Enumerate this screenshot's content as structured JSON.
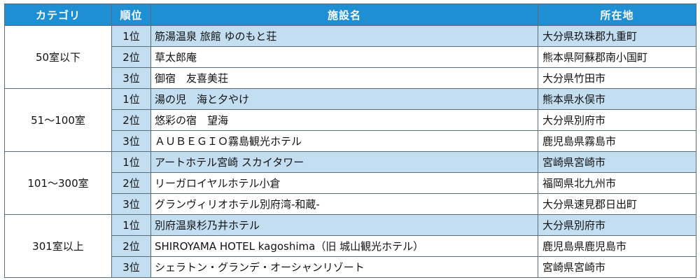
{
  "headers": {
    "category": "カテゴリ",
    "rank": "順位",
    "facility": "施設名",
    "location": "所在地"
  },
  "groups": [
    {
      "category": "50室以下",
      "rows": [
        {
          "rank": "1位",
          "name": "筋湯温泉 旅館 ゆのもと荘",
          "location": "大分県玖珠郡九重町"
        },
        {
          "rank": "2位",
          "name": "草太郎庵",
          "location": "熊本県阿蘇郡南小国町"
        },
        {
          "rank": "3位",
          "name": "御宿　友喜美荘",
          "location": "大分県竹田市"
        }
      ]
    },
    {
      "category": "51～100室",
      "rows": [
        {
          "rank": "1位",
          "name": "湯の児　海と夕やけ",
          "location": "熊本県水俣市"
        },
        {
          "rank": "2位",
          "name": "悠彩の宿　望海",
          "location": "大分県別府市"
        },
        {
          "rank": "3位",
          "name": "ＡＵＢＥＧＩＯ霧島観光ホテル",
          "location": "鹿児島県霧島市"
        }
      ]
    },
    {
      "category": "101～300室",
      "rows": [
        {
          "rank": "1位",
          "name": "アートホテル宮崎 スカイタワー",
          "location": "宮崎県宮崎市"
        },
        {
          "rank": "2位",
          "name": "リーガロイヤルホテル小倉",
          "location": "福岡県北九州市"
        },
        {
          "rank": "3位",
          "name": "グランヴィリオホテル別府湾-和蔵-",
          "location": "大分県速見郡日出町"
        }
      ]
    },
    {
      "category": "301室以上",
      "rows": [
        {
          "rank": "1位",
          "name": "別府温泉杉乃井ホテル",
          "location": "大分県別府市"
        },
        {
          "rank": "2位",
          "name": "SHIROYAMA HOTEL kagoshima（旧 城山観光ホテル）",
          "location": "鹿児島県鹿児島市"
        },
        {
          "rank": "3位",
          "name": "シェラトン・グランデ・オーシャンリゾート",
          "location": "宮崎県宮崎市"
        }
      ]
    }
  ]
}
